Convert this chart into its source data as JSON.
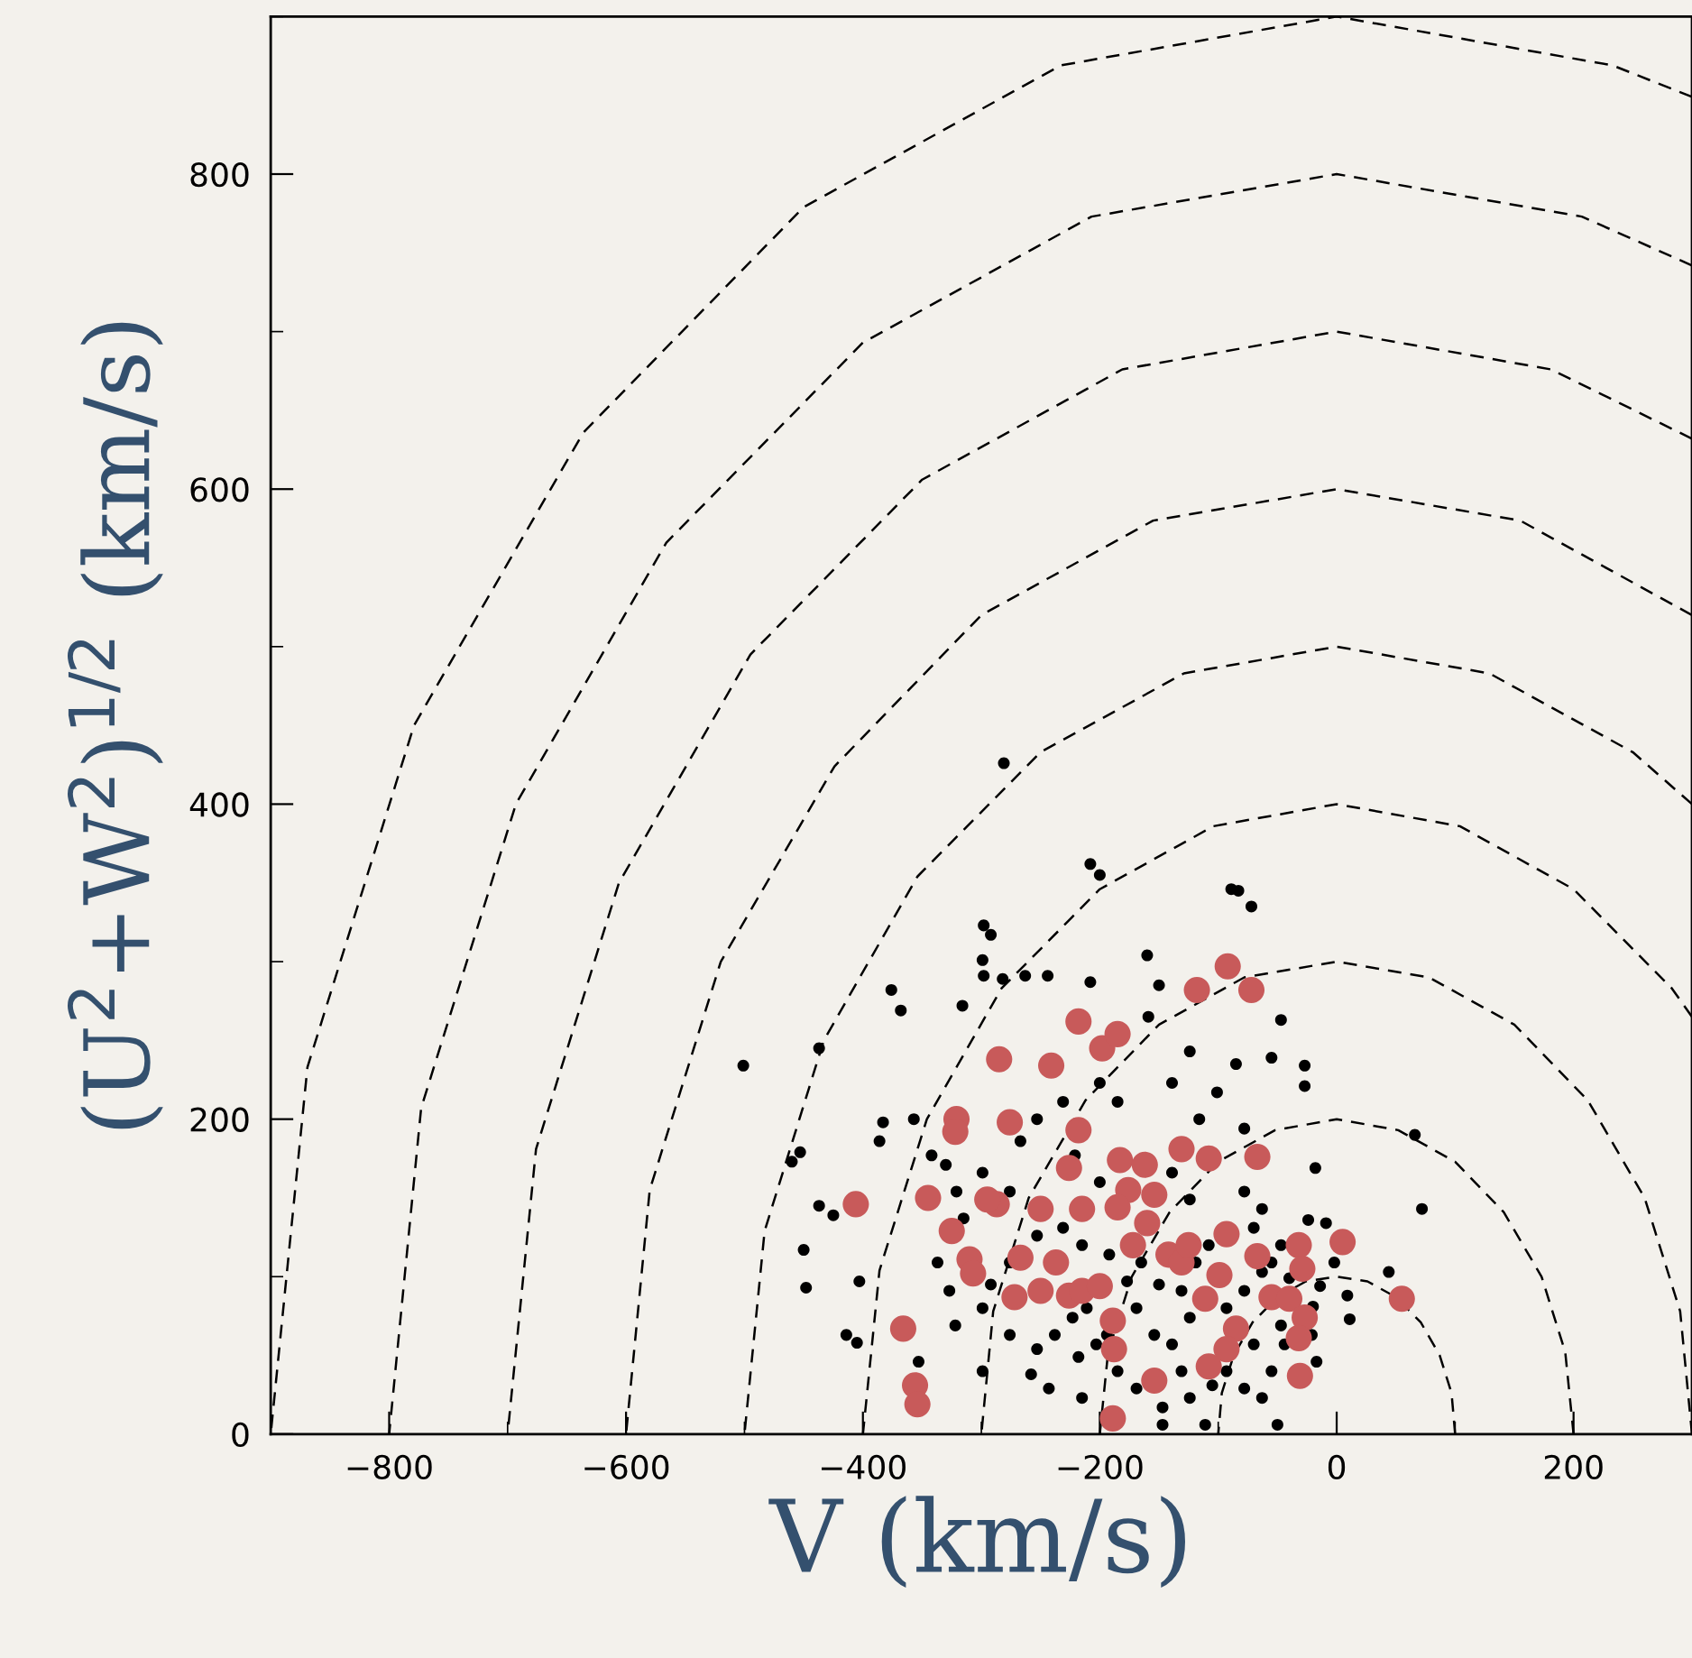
{
  "chart_data": {
    "type": "scatter",
    "xlabel": "V (km/s)",
    "ylabel": "(U$^{2}$+W$^{2}$)$^{1/2}$ (km/s)",
    "xlim": [
      -900,
      300
    ],
    "ylim": [
      0,
      900
    ],
    "xticks": [
      -800,
      -600,
      -400,
      -200,
      0,
      200
    ],
    "yticks": [
      0,
      200,
      400,
      600,
      800
    ],
    "grid": false,
    "legend": false,
    "marker": "circle",
    "series": [
      {
        "type": "line",
        "color": "#000000",
        "line_style": "dashed",
        "marker": "none",
        "x": [
          100,
          97,
          87,
          71,
          50,
          26,
          0,
          -26,
          -50,
          -71,
          -87,
          -97,
          -100
        ],
        "values": [
          0,
          26,
          50,
          71,
          87,
          97,
          100,
          97,
          87,
          71,
          50,
          26,
          0
        ]
      },
      {
        "type": "line",
        "color": "#000000",
        "line_style": "dashed",
        "marker": "none",
        "x": [
          200,
          193,
          173,
          141,
          100,
          52,
          0,
          -52,
          -100,
          -141,
          -173,
          -193,
          -200
        ],
        "values": [
          0,
          52,
          100,
          141,
          173,
          193,
          200,
          193,
          173,
          141,
          100,
          52,
          0
        ]
      },
      {
        "type": "line",
        "color": "#000000",
        "line_style": "dashed",
        "marker": "none",
        "x": [
          300,
          290,
          260,
          212,
          150,
          78,
          0,
          -78,
          -150,
          -212,
          -260,
          -290,
          -300
        ],
        "values": [
          0,
          78,
          150,
          212,
          260,
          290,
          300,
          290,
          260,
          212,
          150,
          78,
          0
        ]
      },
      {
        "type": "line",
        "color": "#000000",
        "line_style": "dashed",
        "marker": "none",
        "x": [
          300,
          283,
          200,
          104,
          0,
          -104,
          -200,
          -283,
          -346,
          -386,
          -400
        ],
        "values": [
          265,
          283,
          346,
          386,
          400,
          386,
          346,
          283,
          200,
          104,
          0
        ]
      },
      {
        "type": "line",
        "color": "#000000",
        "line_style": "dashed",
        "marker": "none",
        "x": [
          300,
          250,
          129,
          0,
          -129,
          -250,
          -354,
          -433,
          -483,
          -500
        ],
        "values": [
          400,
          433,
          483,
          500,
          483,
          433,
          354,
          250,
          129,
          0
        ]
      },
      {
        "type": "line",
        "color": "#000000",
        "line_style": "dashed",
        "marker": "none",
        "x": [
          300,
          155,
          0,
          -155,
          -300,
          -424,
          -520,
          -580,
          -600
        ],
        "values": [
          520,
          580,
          600,
          580,
          520,
          424,
          300,
          155,
          0
        ]
      },
      {
        "type": "line",
        "color": "#000000",
        "line_style": "dashed",
        "marker": "none",
        "x": [
          300,
          181,
          0,
          -181,
          -350,
          -495,
          -606,
          -676,
          -700
        ],
        "values": [
          632,
          676,
          700,
          676,
          606,
          495,
          350,
          181,
          0
        ]
      },
      {
        "type": "line",
        "color": "#000000",
        "line_style": "dashed",
        "marker": "none",
        "x": [
          300,
          207,
          0,
          -207,
          -400,
          -566,
          -693,
          -773,
          -800
        ],
        "values": [
          742,
          773,
          800,
          773,
          693,
          566,
          400,
          207,
          0
        ]
      },
      {
        "type": "line",
        "color": "#000000",
        "line_style": "dashed",
        "marker": "none",
        "x": [
          300,
          233,
          0,
          -233,
          -450,
          -636,
          -779,
          -869,
          -900
        ],
        "values": [
          849,
          869,
          900,
          869,
          779,
          636,
          450,
          233,
          0
        ]
      },
      {
        "color": "#000000",
        "x": [
          -501,
          -281,
          -208,
          -298,
          -292,
          -376,
          -368,
          -437,
          -453,
          -460,
          -450,
          -448,
          -425,
          -437,
          -403,
          -414,
          -405,
          -353,
          -342,
          -357,
          -383,
          -386,
          -316,
          -298,
          -299,
          -282,
          -263,
          -244,
          -208,
          -200,
          -160,
          -89,
          -83,
          -72,
          -159,
          -150,
          -47,
          -27,
          -27,
          -85,
          -124,
          -55,
          66,
          72,
          -18,
          -24,
          -9,
          44,
          9,
          11,
          -14,
          -2,
          -200,
          -185,
          -231,
          -253,
          -267,
          -221,
          -200,
          -139,
          -116,
          -101,
          -78,
          -139,
          -124,
          -78,
          -63,
          -47,
          -63,
          -78,
          -93,
          -124,
          -139,
          -154,
          -169,
          -177,
          -192,
          -215,
          -231,
          -253,
          -276,
          -292,
          -299,
          -276,
          -253,
          -238,
          -218,
          -203,
          -185,
          -169,
          -147,
          -124,
          -105,
          -78,
          -55,
          -44,
          -21,
          -17,
          -50,
          -111,
          -147,
          -63,
          -276,
          -299,
          -321,
          -330,
          -315,
          -337,
          -327,
          -322,
          -299,
          -258,
          -243,
          -215,
          -194,
          -223,
          -211,
          -165,
          -150,
          -131,
          -119,
          -108,
          -70,
          -55,
          -40,
          -20,
          -47,
          -70,
          -93,
          -131
        ],
        "values": [
          234,
          426,
          362,
          323,
          317,
          282,
          269,
          245,
          179,
          173,
          117,
          93,
          139,
          145,
          97,
          63,
          58,
          46,
          177,
          200,
          198,
          186,
          272,
          291,
          301,
          289,
          291,
          291,
          287,
          355,
          304,
          346,
          345,
          335,
          265,
          285,
          263,
          234,
          221,
          235,
          243,
          239,
          190,
          143,
          169,
          136,
          134,
          103,
          88,
          73,
          94,
          109,
          223,
          211,
          211,
          200,
          186,
          177,
          160,
          223,
          200,
          217,
          194,
          166,
          149,
          154,
          143,
          120,
          103,
          91,
          80,
          74,
          57,
          63,
          80,
          97,
          114,
          120,
          131,
          126,
          109,
          95,
          80,
          63,
          54,
          63,
          49,
          57,
          40,
          29,
          17,
          23,
          31,
          29,
          40,
          57,
          63,
          46,
          6,
          6,
          6,
          23,
          154,
          166,
          154,
          171,
          137,
          109,
          91,
          69,
          40,
          38,
          29,
          23,
          63,
          74,
          80,
          109,
          95,
          91,
          109,
          120,
          131,
          109,
          99,
          81,
          69,
          57,
          40,
          40
        ]
      },
      {
        "color": "#c85a5a",
        "x": [
          -406,
          -366,
          -356,
          -354,
          -345,
          -325,
          -321,
          -322,
          -310,
          -307,
          -285,
          -276,
          -287,
          -267,
          -295,
          -250,
          -241,
          -218,
          -218,
          -198,
          -185,
          -226,
          -215,
          -183,
          -176,
          -162,
          -118,
          -92,
          -72,
          -131,
          -108,
          -67,
          -237,
          -226,
          -215,
          -200,
          -189,
          -189,
          -185,
          -172,
          -160,
          -154,
          -142,
          -131,
          -125,
          -111,
          -99,
          -93,
          -67,
          -32,
          5,
          -29,
          -55,
          -40,
          -27,
          -32,
          -31,
          55,
          -85,
          -93,
          -108,
          -154,
          -188,
          -272,
          -250
        ],
        "values": [
          146,
          67,
          31,
          19,
          150,
          129,
          200,
          192,
          111,
          102,
          238,
          198,
          146,
          112,
          149,
          143,
          234,
          193,
          262,
          245,
          254,
          169,
          143,
          174,
          155,
          171,
          282,
          297,
          282,
          181,
          175,
          176,
          109,
          88,
          91,
          94,
          72,
          10,
          144,
          120,
          134,
          152,
          114,
          109,
          120,
          86,
          101,
          127,
          113,
          120,
          122,
          105,
          87,
          86,
          74,
          61,
          37,
          86,
          67,
          54,
          43,
          34,
          54,
          87,
          91
        ]
      }
    ]
  }
}
